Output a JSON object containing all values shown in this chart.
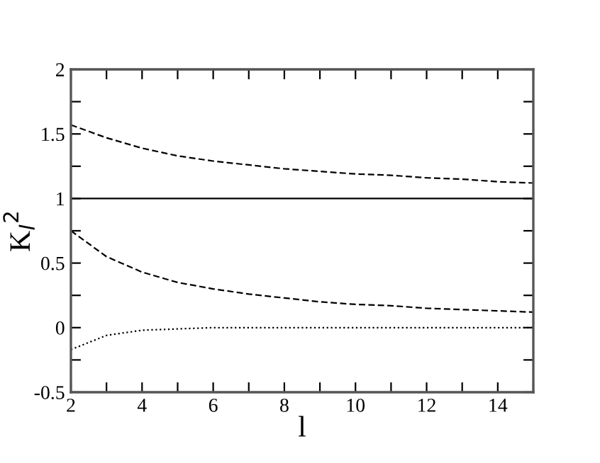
{
  "chart_data": {
    "type": "line",
    "xlabel": "l",
    "ylabel": "K$_{l}$$^{2}$",
    "x": [
      2,
      3,
      4,
      5,
      6,
      7,
      8,
      9,
      10,
      11,
      12,
      13,
      14,
      15
    ],
    "series": [
      {
        "color": "#000000",
        "line_style": "dashed",
        "values": [
          1.57,
          1.47,
          1.39,
          1.33,
          1.29,
          1.26,
          1.23,
          1.21,
          1.19,
          1.18,
          1.16,
          1.15,
          1.13,
          1.12
        ]
      },
      {
        "color": "#000000",
        "line_style": "solid",
        "values": [
          1,
          1,
          1,
          1,
          1,
          1,
          1,
          1,
          1,
          1,
          1,
          1,
          1,
          1
        ]
      },
      {
        "color": "#000000",
        "line_style": "dashed",
        "values": [
          0.75,
          0.55,
          0.43,
          0.35,
          0.3,
          0.26,
          0.23,
          0.2,
          0.18,
          0.17,
          0.15,
          0.14,
          0.13,
          0.12
        ]
      },
      {
        "color": "#000000",
        "line_style": "dotted",
        "values": [
          -0.17,
          -0.06,
          -0.02,
          -0.01,
          0,
          0,
          0,
          0,
          0,
          0,
          0,
          0,
          0,
          0
        ]
      }
    ],
    "xlim": [
      2,
      15
    ],
    "xticks": [
      2,
      {
        "value": 3,
        "label": null
      },
      4,
      {
        "value": 5,
        "label": null
      },
      6,
      {
        "value": 7,
        "label": null
      },
      8,
      {
        "value": 9,
        "label": null
      },
      10,
      {
        "value": 11,
        "label": null
      },
      12,
      {
        "value": 13,
        "label": null
      },
      14,
      {
        "value": 15,
        "label": null
      }
    ],
    "ylim": [
      -0.5,
      2
    ],
    "yticks": [
      -0.5,
      {
        "value": -0.25,
        "label": null
      },
      0,
      {
        "value": 0.25,
        "label": null
      },
      0.5,
      {
        "value": 0.75,
        "label": null
      },
      1,
      {
        "value": 1.25,
        "label": null
      },
      1.5,
      {
        "value": 1.75,
        "label": null
      },
      2
    ],
    "grid": false,
    "legend": false,
    "marker": "none"
  }
}
